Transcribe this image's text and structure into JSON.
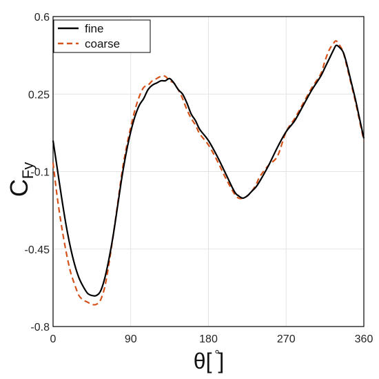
{
  "colors": {
    "fine": "#000000",
    "coarse": "#d4521a",
    "grid": "#e3e3e3",
    "axis": "#000000"
  },
  "chart_data": {
    "type": "line",
    "title": "",
    "xlabel": "θ[ ]",
    "xlabel_degree_mark": "°",
    "ylabel": "C",
    "ylabel_sub": "Fy",
    "xlim": [
      0,
      360
    ],
    "ylim": [
      -0.8,
      0.6
    ],
    "xticks": [
      0,
      90,
      180,
      270,
      360
    ],
    "xtick_labels": [
      "0",
      "90",
      "180",
      "270",
      "360"
    ],
    "yticks": [
      -0.8,
      -0.45,
      -0.1,
      0.25,
      0.6
    ],
    "ytick_labels": [
      "-0.8",
      "-0.45",
      "-0.1",
      "0.25",
      "0.6"
    ],
    "grid": true,
    "legend_position": "top-left",
    "series": [
      {
        "name": "fine",
        "color": "#000000",
        "dash": "solid",
        "x": [
          0,
          5,
          10,
          15,
          20,
          25,
          30,
          35,
          40,
          45,
          50,
          55,
          60,
          65,
          70,
          75,
          80,
          85,
          90,
          95,
          100,
          105,
          110,
          115,
          120,
          125,
          130,
          135,
          140,
          145,
          150,
          155,
          160,
          165,
          170,
          180,
          190,
          200,
          210,
          215,
          220,
          225,
          230,
          235,
          240,
          250,
          260,
          270,
          280,
          290,
          300,
          310,
          315,
          320,
          325,
          328,
          332,
          336,
          340,
          345,
          350,
          355,
          360
        ],
        "values": [
          0.04,
          -0.09,
          -0.22,
          -0.34,
          -0.44,
          -0.52,
          -0.58,
          -0.62,
          -0.65,
          -0.66,
          -0.66,
          -0.64,
          -0.58,
          -0.49,
          -0.38,
          -0.25,
          -0.12,
          -0.01,
          0.08,
          0.15,
          0.2,
          0.23,
          0.27,
          0.29,
          0.3,
          0.31,
          0.31,
          0.32,
          0.3,
          0.27,
          0.25,
          0.21,
          0.16,
          0.13,
          0.09,
          0.04,
          -0.03,
          -0.11,
          -0.19,
          -0.21,
          -0.22,
          -0.21,
          -0.19,
          -0.17,
          -0.14,
          -0.07,
          0.01,
          0.08,
          0.13,
          0.2,
          0.27,
          0.33,
          0.37,
          0.41,
          0.45,
          0.47,
          0.46,
          0.44,
          0.39,
          0.31,
          0.23,
          0.14,
          0.05
        ]
      },
      {
        "name": "coarse",
        "color": "#d4521a",
        "dash": "dashed",
        "x": [
          0,
          5,
          10,
          15,
          20,
          25,
          30,
          35,
          40,
          45,
          50,
          55,
          60,
          65,
          70,
          75,
          80,
          85,
          90,
          95,
          100,
          105,
          110,
          115,
          120,
          125,
          130,
          135,
          140,
          145,
          150,
          155,
          160,
          165,
          170,
          180,
          190,
          200,
          210,
          215,
          220,
          225,
          230,
          235,
          240,
          250,
          260,
          270,
          280,
          290,
          300,
          310,
          315,
          320,
          325,
          328,
          332,
          336,
          340,
          345,
          350,
          355,
          360
        ],
        "values": [
          -0.06,
          -0.22,
          -0.35,
          -0.46,
          -0.55,
          -0.61,
          -0.66,
          -0.68,
          -0.69,
          -0.7,
          -0.7,
          -0.68,
          -0.62,
          -0.51,
          -0.38,
          -0.24,
          -0.1,
          0.01,
          0.1,
          0.18,
          0.24,
          0.28,
          0.29,
          0.31,
          0.32,
          0.33,
          0.33,
          0.31,
          0.3,
          0.27,
          0.23,
          0.18,
          0.14,
          0.11,
          0.07,
          0.02,
          -0.05,
          -0.13,
          -0.2,
          -0.22,
          -0.22,
          -0.21,
          -0.19,
          -0.16,
          -0.12,
          -0.07,
          -0.03,
          0.08,
          0.14,
          0.21,
          0.28,
          0.34,
          0.4,
          0.45,
          0.48,
          0.49,
          0.47,
          0.44,
          0.38,
          0.3,
          0.22,
          0.13,
          0.04
        ]
      }
    ]
  }
}
